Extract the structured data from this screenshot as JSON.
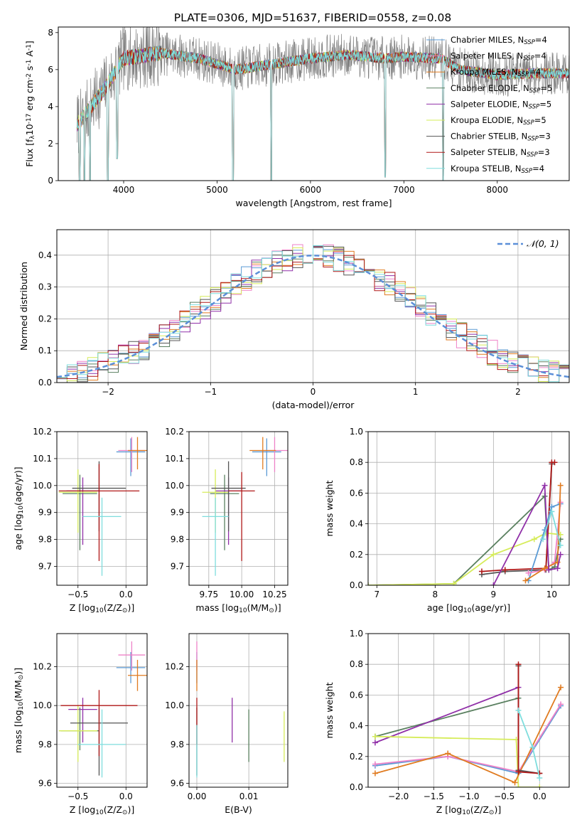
{
  "figure_title": "PLATE=0306, MJD=51637, FIBERID=0558, z=0.08",
  "colors": {
    "chabrier_miles": "#5b9bd5",
    "salpeter_miles": "#ee82c8",
    "kroupa_miles": "#e07b20",
    "chabrier_elodie": "#5a8060",
    "salpeter_elodie": "#9030a8",
    "kroupa_elodie": "#d6ec5a",
    "chabrier_stelib": "#555555",
    "salpeter_stelib": "#b01818",
    "kroupa_stelib": "#7fdddd",
    "data": "#808080",
    "grid": "#b0b0b0"
  },
  "chart_data": [
    {
      "id": "spectrum",
      "type": "line",
      "title": "PLATE=0306, MJD=51637, FIBERID=0558, z=0.08",
      "xlabel": "wavelength [Angstrom, rest frame]",
      "ylabel": "Flux [f_λ10^{-17} erg cm^{-2} s^{-1} A^{-1}]",
      "xlim": [
        3300,
        8770
      ],
      "ylim": [
        0,
        8.3
      ],
      "xticks": [
        4000,
        5000,
        6000,
        7000,
        8000
      ],
      "yticks": [
        0,
        2,
        4,
        6,
        8
      ],
      "grid": false,
      "legend_position": "right",
      "legend": [
        {
          "label": "Chabrier MILES, N",
          "sub": "SSP",
          "suffix": "=4"
        },
        {
          "label": "Salpeter MILES, N",
          "sub": "SSP",
          "suffix": "=4"
        },
        {
          "label": "Kroupa MILES, N",
          "sub": "SSP",
          "suffix": "=4"
        },
        {
          "label": "Chabrier ELODIE, N",
          "sub": "SSP",
          "suffix": "=5"
        },
        {
          "label": "Salpeter ELODIE, N",
          "sub": "SSP",
          "suffix": "=5"
        },
        {
          "label": "Kroupa ELODIE, N",
          "sub": "SSP",
          "suffix": "=5"
        },
        {
          "label": "Chabrier STELIB, N",
          "sub": "SSP",
          "suffix": "=3"
        },
        {
          "label": "Salpeter STELIB, N",
          "sub": "SSP",
          "suffix": "=3"
        },
        {
          "label": "Kroupa STELIB, N",
          "sub": "SSP",
          "suffix": "=4"
        }
      ],
      "continuum_knots": [
        [
          3500,
          3.0
        ],
        [
          3650,
          4.0
        ],
        [
          3800,
          5.0
        ],
        [
          4000,
          6.6
        ],
        [
          4400,
          6.9
        ],
        [
          4800,
          6.6
        ],
        [
          5200,
          6.0
        ],
        [
          5600,
          6.3
        ],
        [
          6000,
          6.6
        ],
        [
          6400,
          6.8
        ],
        [
          6800,
          6.6
        ],
        [
          7000,
          6.7
        ],
        [
          7400,
          6.6
        ],
        [
          7600,
          6.0
        ],
        [
          8000,
          5.7
        ],
        [
          8400,
          5.8
        ],
        [
          8770,
          5.8
        ]
      ],
      "data_noise_amplitude": 1.5,
      "model_noise_amplitude": 0.35,
      "dips": [
        [
          3530,
          0.0
        ],
        [
          3580,
          0.0
        ],
        [
          3640,
          0.0
        ],
        [
          3830,
          0.0
        ],
        [
          3930,
          1.2
        ],
        [
          5170,
          0.0
        ],
        [
          5580,
          0.0
        ],
        [
          6800,
          0.2
        ],
        [
          7420,
          0.0
        ]
      ],
      "wavelength_range": [
        3500,
        8770
      ]
    },
    {
      "id": "residuals",
      "type": "histogram",
      "xlabel": "(data-model)/error",
      "ylabel": "Normed distribution",
      "xlim": [
        -2.5,
        2.5
      ],
      "ylim": [
        0,
        0.48
      ],
      "xticks": [
        -2,
        -1,
        0,
        1,
        2
      ],
      "yticks": [
        0,
        0.1,
        0.2,
        0.3,
        0.4
      ],
      "grid": true,
      "legend_position": "top-right",
      "legend": [
        {
          "label": "𝒩(0, 1)"
        }
      ],
      "bin_width": 0.1,
      "reference_curve": {
        "name": "𝒩(0, 1)",
        "mean": 0,
        "sigma": 1
      },
      "series_variation": 0.04,
      "series_count": 9
    },
    {
      "id": "age_vs_z",
      "type": "scatter",
      "xlabel": "Z [log10(Z/Z⊙)]",
      "ylabel": "age  [log10(age/yr)]",
      "xlim": [
        -0.72,
        0.22
      ],
      "ylim": [
        9.63,
        10.2
      ],
      "xticks": [
        -0.5,
        0.0
      ],
      "yticks": [
        9.7,
        9.8,
        9.9,
        10.0,
        10.1,
        10.2
      ],
      "grid": true,
      "points": [
        {
          "series": "chabrier_miles",
          "x": 0.05,
          "y": 10.125,
          "xerr": 0.15,
          "yerr": [
            0.09,
            0.05
          ]
        },
        {
          "series": "salpeter_miles",
          "x": 0.06,
          "y": 10.13,
          "xerr": 0.14,
          "yerr": [
            0.08,
            0.05
          ]
        },
        {
          "series": "kroupa_miles",
          "x": 0.12,
          "y": 10.13,
          "xerr": 0.1,
          "yerr": [
            0.07,
            0.05
          ]
        },
        {
          "series": "chabrier_elodie",
          "x": -0.48,
          "y": 9.97,
          "xerr": 0.18,
          "yerr": [
            0.21,
            0.07
          ]
        },
        {
          "series": "salpeter_elodie",
          "x": -0.45,
          "y": 9.98,
          "xerr": 0.17,
          "yerr": [
            0.2,
            0.05
          ]
        },
        {
          "series": "kroupa_elodie",
          "x": -0.5,
          "y": 9.975,
          "xerr": 0.2,
          "yerr": [
            0.15,
            0.085
          ]
        },
        {
          "series": "chabrier_stelib",
          "x": -0.28,
          "y": 9.99,
          "xerr": 0.28,
          "yerr": [
            0.16,
            0.1
          ]
        },
        {
          "series": "salpeter_stelib",
          "x": -0.28,
          "y": 9.98,
          "xerr": 0.42,
          "yerr": [
            0.26,
            0.1
          ]
        },
        {
          "series": "kroupa_stelib",
          "x": -0.25,
          "y": 9.885,
          "xerr": 0.2,
          "yerr": [
            0.22,
            0.07
          ]
        }
      ]
    },
    {
      "id": "age_vs_mass",
      "type": "scatter",
      "xlabel": "mass [log10(M/M⊙)]",
      "ylabel": "",
      "xlim": [
        9.6,
        10.35
      ],
      "ylim": [
        9.63,
        10.2
      ],
      "xticks": [
        9.75,
        10.0,
        10.25
      ],
      "yticks": [
        9.7,
        9.8,
        9.9,
        10.0,
        10.1,
        10.2
      ],
      "grid": true,
      "points": [
        {
          "series": "chabrier_miles",
          "x": 10.19,
          "y": 10.125,
          "xerr": 0.11,
          "yerr": [
            0.09,
            0.05
          ]
        },
        {
          "series": "salpeter_miles",
          "x": 10.25,
          "y": 10.13,
          "xerr": 0.1,
          "yerr": [
            0.08,
            0.05
          ]
        },
        {
          "series": "kroupa_miles",
          "x": 10.16,
          "y": 10.13,
          "xerr": 0.1,
          "yerr": [
            0.07,
            0.05
          ]
        },
        {
          "series": "chabrier_elodie",
          "x": 9.87,
          "y": 9.97,
          "xerr": 0.11,
          "yerr": [
            0.21,
            0.07
          ]
        },
        {
          "series": "salpeter_elodie",
          "x": 9.9,
          "y": 9.98,
          "xerr": 0.1,
          "yerr": [
            0.2,
            0.05
          ]
        },
        {
          "series": "kroupa_elodie",
          "x": 9.8,
          "y": 9.975,
          "xerr": 0.1,
          "yerr": [
            0.15,
            0.085
          ]
        },
        {
          "series": "chabrier_stelib",
          "x": 9.9,
          "y": 9.99,
          "xerr": 0.13,
          "yerr": [
            0.16,
            0.1
          ]
        },
        {
          "series": "salpeter_stelib",
          "x": 10.0,
          "y": 9.98,
          "xerr": 0.1,
          "yerr": [
            0.26,
            0.07
          ]
        },
        {
          "series": "kroupa_stelib",
          "x": 9.8,
          "y": 9.885,
          "xerr": 0.1,
          "yerr": [
            0.22,
            0.07
          ]
        }
      ]
    },
    {
      "id": "weight_vs_age",
      "type": "line",
      "xlabel": "age  [log10(age/yr)]",
      "ylabel": "mass weight",
      "xlim": [
        6.85,
        10.3
      ],
      "ylim": [
        0,
        1.0
      ],
      "xticks": [
        7,
        8,
        9,
        10
      ],
      "yticks": [
        0.0,
        0.2,
        0.4,
        0.6,
        0.8,
        1.0
      ],
      "grid": true,
      "series": [
        {
          "key": "chabrier_elodie",
          "x": [
            6.85,
            8.32,
            9.88,
            9.95,
            10.05,
            10.15
          ],
          "y": [
            0.0,
            0.01,
            0.58,
            0.1,
            0.12,
            0.3
          ]
        },
        {
          "key": "kroupa_elodie",
          "x": [
            6.85,
            8.32,
            9.0,
            9.7,
            9.9,
            10.15
          ],
          "y": [
            0.0,
            0.01,
            0.2,
            0.3,
            0.34,
            0.33
          ]
        },
        {
          "key": "chabrier_stelib",
          "x": [
            8.8,
            9.2,
            9.9,
            10.0
          ],
          "y": [
            0.07,
            0.09,
            0.1,
            0.79
          ]
        },
        {
          "key": "salpeter_stelib",
          "x": [
            8.8,
            9.2,
            9.9,
            10.0,
            10.05
          ],
          "y": [
            0.09,
            0.1,
            0.11,
            0.8,
            0.8
          ]
        },
        {
          "key": "chabrier_miles",
          "x": [
            9.6,
            9.88,
            10.0,
            10.15
          ],
          "y": [
            0.03,
            0.36,
            0.51,
            0.53
          ]
        },
        {
          "key": "salpeter_miles",
          "x": [
            9.6,
            9.88,
            10.05,
            10.15
          ],
          "y": [
            0.08,
            0.1,
            0.15,
            0.54
          ]
        },
        {
          "key": "kroupa_miles",
          "x": [
            9.55,
            9.88,
            10.1,
            10.15
          ],
          "y": [
            0.03,
            0.11,
            0.15,
            0.65
          ]
        },
        {
          "key": "salpeter_elodie",
          "x": [
            9.0,
            9.88,
            9.95,
            10.1,
            10.15
          ],
          "y": [
            0.0,
            0.65,
            0.1,
            0.11,
            0.2
          ]
        },
        {
          "key": "kroupa_stelib",
          "x": [
            9.85,
            10.0,
            10.15
          ],
          "y": [
            0.3,
            0.48,
            0.26
          ]
        }
      ]
    },
    {
      "id": "mass_vs_z",
      "type": "scatter",
      "xlabel": "Z [log10(Z/Z⊙)]",
      "ylabel": "mass [log10(M/M⊙)]",
      "xlim": [
        -0.72,
        0.22
      ],
      "ylim": [
        9.58,
        10.37
      ],
      "xticks": [
        -0.5,
        0.0
      ],
      "yticks": [
        9.6,
        9.8,
        10.0,
        10.2
      ],
      "grid": true,
      "points": [
        {
          "series": "chabrier_miles",
          "x": 0.05,
          "y": 10.195,
          "xerr": 0.15,
          "yerr": [
            0.08,
            0.08
          ]
        },
        {
          "series": "salpeter_miles",
          "x": 0.06,
          "y": 10.26,
          "xerr": 0.14,
          "yerr": [
            0.08,
            0.07
          ]
        },
        {
          "series": "kroupa_miles",
          "x": 0.12,
          "y": 10.155,
          "xerr": 0.1,
          "yerr": [
            0.08,
            0.08
          ]
        },
        {
          "series": "chabrier_elodie",
          "x": -0.48,
          "y": 9.87,
          "xerr": 0.2,
          "yerr": [
            0.1,
            0.12
          ]
        },
        {
          "series": "salpeter_elodie",
          "x": -0.45,
          "y": 9.98,
          "xerr": 0.15,
          "yerr": [
            0.17,
            0.06
          ]
        },
        {
          "series": "kroupa_elodie",
          "x": -0.5,
          "y": 9.87,
          "xerr": 0.2,
          "yerr": [
            0.16,
            0.13
          ]
        },
        {
          "series": "chabrier_stelib",
          "x": -0.28,
          "y": 9.91,
          "xerr": 0.3,
          "yerr": [
            0.27,
            0.08
          ]
        },
        {
          "series": "salpeter_stelib",
          "x": -0.28,
          "y": 10.0,
          "xerr": 0.4,
          "yerr": [
            0.26,
            0.08
          ]
        },
        {
          "series": "kroupa_stelib",
          "x": -0.25,
          "y": 9.8,
          "xerr": 0.25,
          "yerr": [
            0.17,
            0.18
          ]
        }
      ]
    },
    {
      "id": "mass_vs_ebv",
      "type": "scatter",
      "xlabel": "E(B-V)",
      "ylabel": "",
      "xlim": [
        -0.0015,
        0.0175
      ],
      "ylim": [
        9.58,
        10.37
      ],
      "xticks": [
        0.0,
        0.01
      ],
      "yticks": [
        9.6,
        9.8,
        10.0,
        10.2
      ],
      "grid": true,
      "points": [
        {
          "series": "chabrier_miles",
          "x": 0.0,
          "y": 10.195,
          "xerr": 0,
          "yerr": [
            0.08,
            0.08
          ]
        },
        {
          "series": "salpeter_miles",
          "x": 0.0,
          "y": 10.26,
          "xerr": 0,
          "yerr": [
            0.08,
            0.07
          ]
        },
        {
          "series": "kroupa_miles",
          "x": 0.0,
          "y": 10.155,
          "xerr": 0,
          "yerr": [
            0.08,
            0.08
          ]
        },
        {
          "series": "chabrier_elodie",
          "x": 0.01,
          "y": 9.87,
          "xerr": 0,
          "yerr": [
            0.16,
            0.11
          ]
        },
        {
          "series": "salpeter_elodie",
          "x": 0.0068,
          "y": 9.92,
          "xerr": 0,
          "yerr": [
            0.11,
            0.12
          ]
        },
        {
          "series": "kroupa_elodie",
          "x": 0.0168,
          "y": 9.84,
          "xerr": 0,
          "yerr": [
            0.13,
            0.13
          ]
        },
        {
          "series": "chabrier_stelib",
          "x": 0.0,
          "y": 9.91,
          "xerr": 0,
          "yerr": [
            0.27,
            0.08
          ]
        },
        {
          "series": "salpeter_stelib",
          "x": 0.0,
          "y": 9.95,
          "xerr": 0,
          "yerr": [
            0.15,
            0.09
          ]
        },
        {
          "series": "kroupa_stelib",
          "x": 0.0,
          "y": 9.8,
          "xerr": 0,
          "yerr": [
            0.17,
            0.1
          ]
        }
      ]
    },
    {
      "id": "weight_vs_z",
      "type": "line",
      "xlabel": "Z [log10(Z/Z⊙)]",
      "ylabel": "mass weight",
      "xlim": [
        -2.43,
        0.42
      ],
      "ylim": [
        0,
        1.0
      ],
      "xticks": [
        -2.0,
        -1.5,
        -1.0,
        -0.5,
        0.0
      ],
      "yticks": [
        0.0,
        0.2,
        0.4,
        0.6,
        0.8,
        1.0
      ],
      "grid": true,
      "series": [
        {
          "key": "chabrier_elodie",
          "x": [
            -2.33,
            -0.3
          ],
          "y": [
            0.33,
            0.58
          ]
        },
        {
          "key": "salpeter_elodie",
          "x": [
            -2.33,
            -0.3,
            -0.3
          ],
          "y": [
            0.29,
            0.65,
            0.1
          ]
        },
        {
          "key": "kroupa_elodie",
          "x": [
            -2.33,
            -0.33,
            -0.3,
            0.0
          ],
          "y": [
            0.33,
            0.31,
            0.0,
            0.0
          ]
        },
        {
          "key": "chabrier_miles",
          "x": [
            -2.33,
            -1.3,
            -0.3,
            0.3
          ],
          "y": [
            0.14,
            0.2,
            0.09,
            0.53
          ]
        },
        {
          "key": "salpeter_miles",
          "x": [
            -2.33,
            -1.3,
            -0.3,
            0.3
          ],
          "y": [
            0.15,
            0.2,
            0.1,
            0.54
          ]
        },
        {
          "key": "kroupa_miles",
          "x": [
            -2.33,
            -1.3,
            -0.35,
            0.3
          ],
          "y": [
            0.09,
            0.22,
            0.03,
            0.65
          ]
        },
        {
          "key": "chabrier_stelib",
          "x": [
            -0.3,
            -0.3,
            0.0
          ],
          "y": [
            0.79,
            0.11,
            0.09
          ]
        },
        {
          "key": "salpeter_stelib",
          "x": [
            -0.3,
            -0.3,
            0.0
          ],
          "y": [
            0.8,
            0.1,
            0.09
          ]
        },
        {
          "key": "kroupa_stelib",
          "x": [
            -0.3,
            -0.1,
            0.0
          ],
          "y": [
            0.5,
            0.26,
            0.06
          ]
        }
      ]
    }
  ]
}
